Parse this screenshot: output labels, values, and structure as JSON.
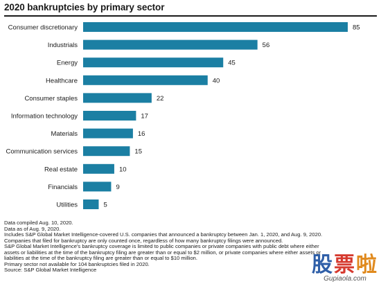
{
  "chart_data": {
    "type": "bar",
    "orientation": "horizontal",
    "title": "2020 bankruptcies by primary sector",
    "categories": [
      "Consumer discretionary",
      "Industrials",
      "Energy",
      "Healthcare",
      "Consumer staples",
      "Information technology",
      "Materials",
      "Communication services",
      "Real estate",
      "Financials",
      "Utilities"
    ],
    "values": [
      85,
      56,
      45,
      40,
      22,
      17,
      16,
      15,
      10,
      9,
      5
    ],
    "xlim": [
      0,
      85
    ],
    "bar_color": "#1b7fa3",
    "data_labels": true,
    "grid": false
  },
  "notes": [
    "Data compiled Aug. 10, 2020.",
    "Data as of Aug. 9, 2020.",
    "Includes S&P Global Market Intelligence-covered U.S. companies that announced a bankruptcy between Jan. 1, 2020, and Aug. 9, 2020.",
    "Companies that filed for bankruptcy are only counted once, regardless of how many bankruptcy filings were announced.",
    "S&P Global Market Intelligence's bankruptcy coverage is limited to public companies or private companies with public debt where either",
    "assets or liabilities at the time of the bankruptcy filing are greater than or equal to $2 million, or private companies where either assets or",
    "liabilities at the time of the bankruptcy filing are greater than or equal to $10 million.",
    "Primary sector not available for 104 bankruptcies filed in 2020.",
    "Source: S&P Global Market Intelligence"
  ],
  "watermark": {
    "chars": [
      "股",
      "票",
      "啦"
    ],
    "url": "Gupiaola.com"
  }
}
